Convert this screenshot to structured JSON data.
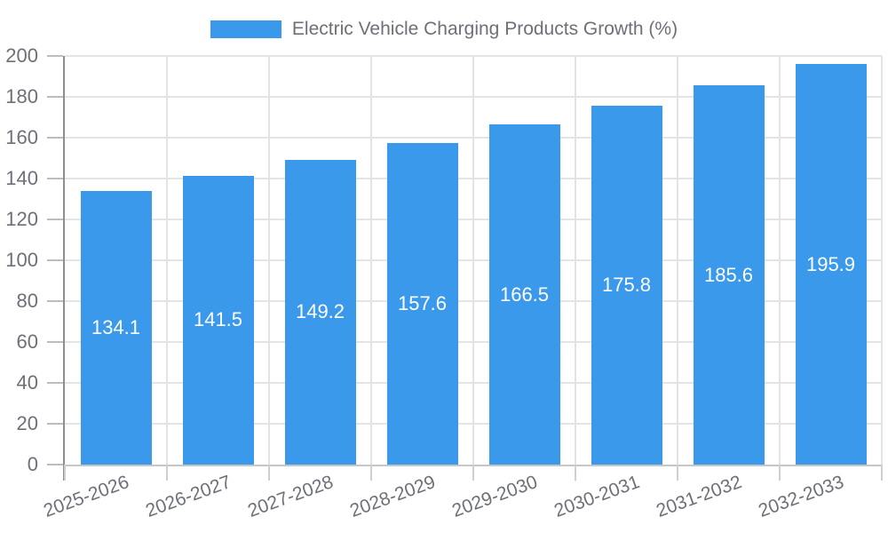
{
  "colors": {
    "bar": "#3b99ec",
    "axis_text": "#6e7079",
    "value_label_text": "#ffffff",
    "gridline": "#e4e4e4",
    "y_axis_line": "#8e8e8e",
    "x_axis_line": "#c6c6c6"
  },
  "chart_data": {
    "type": "bar",
    "title": "Electric Vehicle Charging Products Growth (%)",
    "legend_position": "top-center",
    "categories": [
      "2025-2026",
      "2026-2027",
      "2027-2028",
      "2028-2029",
      "2029-2030",
      "2030-2031",
      "2031-2032",
      "2032-2033"
    ],
    "values": [
      134.1,
      141.5,
      149.2,
      157.6,
      166.5,
      175.8,
      185.6,
      195.9
    ],
    "value_labels": [
      "134.1",
      "141.5",
      "149.2",
      "157.6",
      "166.5",
      "175.8",
      "185.6",
      "195.9"
    ],
    "y_ticks": [
      0,
      20,
      40,
      60,
      80,
      100,
      120,
      140,
      160,
      180,
      200
    ],
    "ylim": [
      0,
      200
    ],
    "xlabel": "",
    "ylabel": "",
    "grid": true,
    "bar_color": "#3b99ec"
  }
}
